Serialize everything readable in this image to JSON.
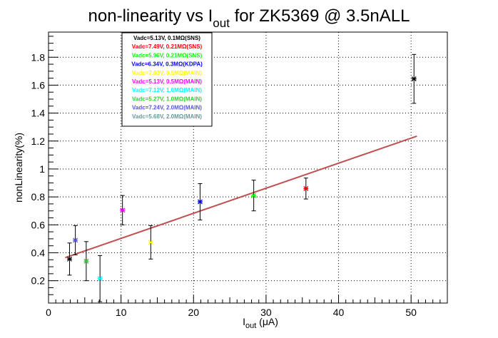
{
  "chart_data": {
    "type": "scatter",
    "title": {
      "prefix": "non-linearity vs I",
      "sub": "out",
      "suffix": " for ZK5369 @ 3.5nALL"
    },
    "xlabel": {
      "main": "I",
      "sub": "out",
      "suffix": " (μA)"
    },
    "ylabel": "nonLinearity(%)",
    "xlim": [
      0,
      55
    ],
    "ylim": [
      0.04,
      1.98
    ],
    "xticks": [
      {
        "v": 0,
        "label": "0"
      },
      {
        "v": 10,
        "label": "10"
      },
      {
        "v": 20,
        "label": "20"
      },
      {
        "v": 30,
        "label": "30"
      },
      {
        "v": 40,
        "label": "40"
      },
      {
        "v": 50,
        "label": "50"
      }
    ],
    "yticks": [
      {
        "v": 0.2,
        "label": "0.2"
      },
      {
        "v": 0.4,
        "label": "0.4"
      },
      {
        "v": 0.6,
        "label": "0.6"
      },
      {
        "v": 0.8,
        "label": "0.8"
      },
      {
        "v": 1.0,
        "label": "1"
      },
      {
        "v": 1.2,
        "label": "1.2"
      },
      {
        "v": 1.4,
        "label": "1.4"
      },
      {
        "v": 1.6,
        "label": "1.6"
      },
      {
        "v": 1.8,
        "label": "1.8"
      }
    ],
    "grid": true,
    "legend_position": "top-left",
    "series": [
      {
        "name": "Vadc=5.13V, 0.1MΩ(SNS)",
        "color": "#000000",
        "points": [
          {
            "x": 2.9,
            "y": 0.355,
            "err": 0.115
          },
          {
            "x": 50.4,
            "y": 1.645,
            "err": 0.175
          }
        ]
      },
      {
        "name": "Vadc=7.49V, 0.21MΩ(SNS)",
        "color": "#ff0000",
        "points": [
          {
            "x": 35.5,
            "y": 0.86,
            "err": 0.075
          }
        ]
      },
      {
        "name": "Vadc=5.96V, 0.21MΩ(SNS)",
        "color": "#00ff00",
        "points": [
          {
            "x": 28.3,
            "y": 0.81,
            "err": 0.11
          }
        ]
      },
      {
        "name": "Vadc=6.34V, 0.3MΩ(KDPA)",
        "color": "#0000ff",
        "points": [
          {
            "x": 20.9,
            "y": 0.765,
            "err": 0.13
          }
        ]
      },
      {
        "name": "Vadc=7.63V, 0.5MΩ(MAIN)",
        "color": "#ffff00",
        "points": [
          {
            "x": 14.1,
            "y": 0.475,
            "err": 0.12
          }
        ]
      },
      {
        "name": "Vadc=5.13V, 0.5MΩ(MAIN)",
        "color": "#ff00ff",
        "points": [
          {
            "x": 10.2,
            "y": 0.705,
            "err": 0.105
          }
        ]
      },
      {
        "name": "Vadc=7.12V, 1.0MΩ(MAIN)",
        "color": "#00ffff",
        "points": [
          {
            "x": 7.1,
            "y": 0.215,
            "err": 0.165
          }
        ]
      },
      {
        "name": "Vadc=5.27V, 1.0MΩ(MAIN)",
        "color": "#33cc33",
        "points": [
          {
            "x": 5.2,
            "y": 0.34,
            "err": 0.14
          }
        ]
      },
      {
        "name": "Vadc=7.24V, 2.0MΩ(MAIN)",
        "color": "#5555dd",
        "points": [
          {
            "x": 3.7,
            "y": 0.49,
            "err": 0.105
          }
        ]
      },
      {
        "name": "Vadc=5.68V, 2.0MΩ(MAIN)",
        "color": "#669999",
        "points": []
      }
    ],
    "fit": {
      "color": "#c05050",
      "x": [
        2.3,
        50.8
      ],
      "y": [
        0.365,
        1.235
      ]
    }
  }
}
